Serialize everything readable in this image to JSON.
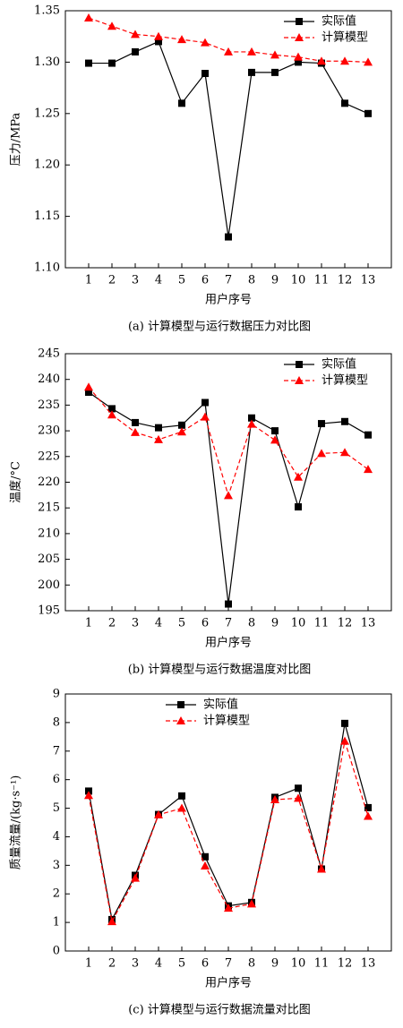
{
  "chart_data": [
    {
      "type": "line",
      "caption": "(a) 计算模型与运行数据压力对比图",
      "xlabel": "用户序号",
      "ylabel": "压力/MPa",
      "categories": [
        "1",
        "2",
        "3",
        "4",
        "5",
        "6",
        "7",
        "8",
        "9",
        "10",
        "11",
        "12",
        "13"
      ],
      "ylim": [
        1.1,
        1.35
      ],
      "yticks": [
        {
          "value": 1.1,
          "label": "1.10"
        },
        {
          "value": 1.15,
          "label": "1.15"
        },
        {
          "value": 1.2,
          "label": "1.20"
        },
        {
          "value": 1.25,
          "label": "1.25"
        },
        {
          "value": 1.3,
          "label": "1.30"
        },
        {
          "value": 1.35,
          "label": "1.35"
        }
      ],
      "legend": "upper right",
      "series": [
        {
          "name": "实际值",
          "color": "#000000",
          "linestyle": "solid",
          "marker": "square",
          "values": [
            1.299,
            1.299,
            1.31,
            1.32,
            1.26,
            1.289,
            1.13,
            1.29,
            1.29,
            1.3,
            1.299,
            1.26,
            1.25
          ]
        },
        {
          "name": "计算模型",
          "color": "#ff0000",
          "linestyle": "dashed",
          "marker": "triangle",
          "values": [
            1.343,
            1.335,
            1.327,
            1.325,
            1.322,
            1.319,
            1.31,
            1.31,
            1.307,
            1.305,
            1.301,
            1.301,
            1.3
          ]
        }
      ]
    },
    {
      "type": "line",
      "caption": "(b) 计算模型与运行数据温度对比图",
      "xlabel": "用户序号",
      "ylabel": "温度/°C",
      "categories": [
        "1",
        "2",
        "3",
        "4",
        "5",
        "6",
        "7",
        "8",
        "9",
        "10",
        "11",
        "12",
        "13"
      ],
      "ylim": [
        195,
        245
      ],
      "yticks": [
        195,
        200,
        205,
        210,
        215,
        220,
        225,
        230,
        235,
        240,
        245
      ],
      "legend": "upper right",
      "series": [
        {
          "name": "实际值",
          "color": "#000000",
          "linestyle": "solid",
          "marker": "square",
          "values": [
            237.5,
            234.3,
            231.6,
            230.6,
            231.1,
            235.5,
            196.3,
            232.5,
            230,
            215.2,
            231.4,
            231.8,
            229.2
          ]
        },
        {
          "name": "计算模型",
          "color": "#ff0000",
          "linestyle": "dashed",
          "marker": "triangle",
          "values": [
            238.5,
            233.1,
            229.7,
            228.3,
            229.8,
            232.7,
            217.4,
            231.3,
            228.2,
            221,
            225.6,
            225.8,
            222.5
          ]
        }
      ]
    },
    {
      "type": "line",
      "caption": "(c) 计算模型与运行数据流量对比图",
      "xlabel": "用户序号",
      "ylabel": "质量流量/(kg·s⁻¹)",
      "categories": [
        "1",
        "2",
        "3",
        "4",
        "5",
        "6",
        "7",
        "8",
        "9",
        "10",
        "11",
        "12",
        "13"
      ],
      "ylim": [
        0,
        9
      ],
      "yticks": [
        0,
        1,
        2,
        3,
        4,
        5,
        6,
        7,
        8,
        9
      ],
      "legend": "upper center",
      "series": [
        {
          "name": "实际值",
          "color": "#000000",
          "linestyle": "solid",
          "marker": "square",
          "values": [
            5.6,
            1.1,
            2.65,
            4.78,
            5.43,
            3.3,
            1.58,
            1.7,
            5.38,
            5.7,
            2.87,
            7.97,
            5.02
          ]
        },
        {
          "name": "计算模型",
          "color": "#ff0000",
          "linestyle": "dashed",
          "marker": "triangle",
          "values": [
            5.45,
            1.03,
            2.55,
            4.77,
            5.0,
            2.98,
            1.5,
            1.65,
            5.3,
            5.35,
            2.87,
            7.35,
            4.72
          ]
        }
      ]
    }
  ]
}
